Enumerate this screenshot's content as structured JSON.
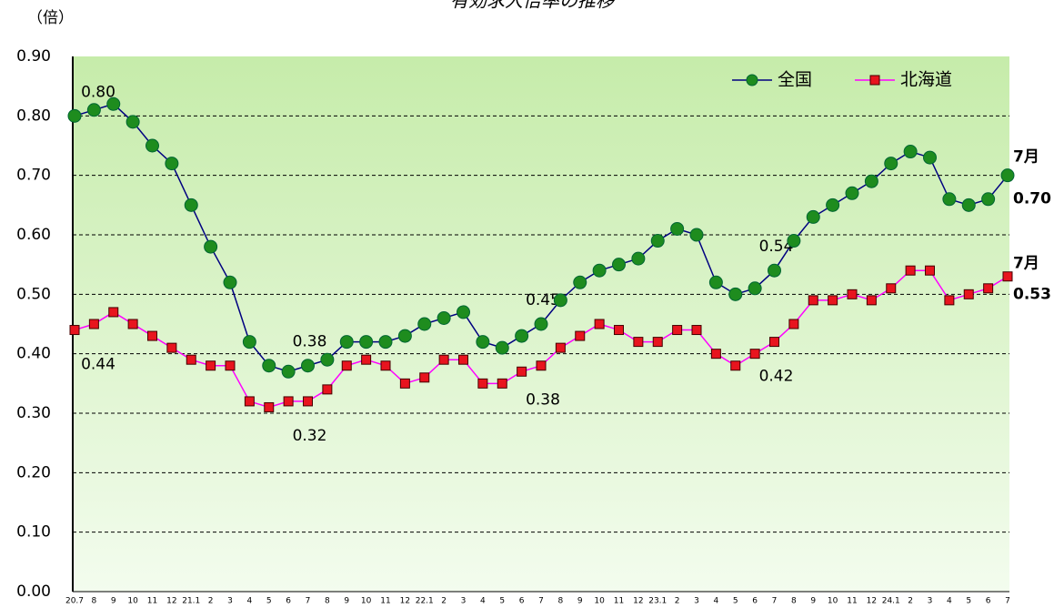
{
  "chart_data": {
    "type": "line",
    "title": "有効求人倍率の推移",
    "y_label": "（倍）",
    "categories": [
      "20.7",
      "8",
      "9",
      "10",
      "11",
      "12",
      "21.1",
      "2",
      "3",
      "4",
      "5",
      "6",
      "7",
      "8",
      "9",
      "10",
      "11",
      "12",
      "22.1",
      "2",
      "3",
      "4",
      "5",
      "6",
      "7",
      "8",
      "9",
      "10",
      "11",
      "12",
      "23.1",
      "2",
      "3",
      "4",
      "5",
      "6",
      "7",
      "8",
      "9",
      "10",
      "11",
      "12",
      "24.1",
      "2",
      "3",
      "4",
      "5",
      "6",
      "7"
    ],
    "ylim": [
      0,
      0.9
    ],
    "yticks": [
      {
        "value": 0,
        "label": "0.00"
      },
      {
        "value": 0.1,
        "label": "0.10"
      },
      {
        "value": 0.2,
        "label": "0.20"
      },
      {
        "value": 0.3,
        "label": "0.30"
      },
      {
        "value": 0.4,
        "label": "0.40"
      },
      {
        "value": 0.5,
        "label": "0.50"
      },
      {
        "value": 0.6,
        "label": "0.60"
      },
      {
        "value": 0.7,
        "label": "0.70"
      },
      {
        "value": 0.8,
        "label": "0.80"
      },
      {
        "value": 0.9,
        "label": "0.90"
      }
    ],
    "grid": true,
    "legend": "top-right",
    "series": [
      {
        "name": "全国",
        "color": "#000080",
        "marker": "circle",
        "marker_color": "#1e8c1e",
        "label_side": "above",
        "end_label": "7月",
        "values": [
          0.8,
          0.81,
          0.82,
          0.79,
          0.75,
          0.72,
          0.65,
          0.58,
          0.52,
          0.42,
          0.38,
          0.37,
          0.38,
          0.39,
          0.42,
          0.42,
          0.42,
          0.43,
          0.45,
          0.46,
          0.47,
          0.42,
          0.41,
          0.43,
          0.45,
          0.49,
          0.52,
          0.54,
          0.55,
          0.56,
          0.59,
          0.61,
          0.6,
          0.52,
          0.5,
          0.51,
          0.54,
          0.59,
          0.63,
          0.65,
          0.67,
          0.69,
          0.72,
          0.74,
          0.73,
          0.66,
          0.65,
          0.66,
          0.7
        ],
        "value_labels": [
          "0.80",
          null,
          null,
          null,
          null,
          null,
          null,
          null,
          null,
          null,
          null,
          null,
          "0.38",
          null,
          null,
          null,
          null,
          null,
          null,
          null,
          null,
          null,
          null,
          null,
          "0.45",
          null,
          null,
          null,
          null,
          null,
          null,
          null,
          null,
          null,
          null,
          null,
          "0.54",
          null,
          null,
          null,
          null,
          null,
          null,
          null,
          null,
          null,
          null,
          null,
          "0.70"
        ]
      },
      {
        "name": "北海道",
        "color": "#ff00ff",
        "marker": "square",
        "marker_color": "#e8141e",
        "label_side": "below",
        "end_label": "7月",
        "values": [
          0.44,
          0.45,
          0.47,
          0.45,
          0.43,
          0.41,
          0.39,
          0.38,
          0.38,
          0.32,
          0.31,
          0.32,
          0.32,
          0.34,
          0.38,
          0.39,
          0.38,
          0.35,
          0.36,
          0.39,
          0.39,
          0.35,
          0.35,
          0.37,
          0.38,
          0.41,
          0.43,
          0.45,
          0.44,
          0.42,
          0.42,
          0.44,
          0.44,
          0.4,
          0.38,
          0.4,
          0.42,
          0.45,
          0.49,
          0.49,
          0.5,
          0.49,
          0.51,
          0.54,
          0.54,
          0.49,
          0.5,
          0.51,
          0.53
        ],
        "value_labels": [
          "0.44",
          null,
          null,
          null,
          null,
          null,
          null,
          null,
          null,
          null,
          null,
          null,
          "0.32",
          null,
          null,
          null,
          null,
          null,
          null,
          null,
          null,
          null,
          null,
          null,
          "0.38",
          null,
          null,
          null,
          null,
          null,
          null,
          null,
          null,
          null,
          null,
          null,
          "0.42",
          null,
          null,
          null,
          null,
          null,
          null,
          null,
          null,
          null,
          null,
          null,
          "0.53"
        ]
      }
    ]
  }
}
